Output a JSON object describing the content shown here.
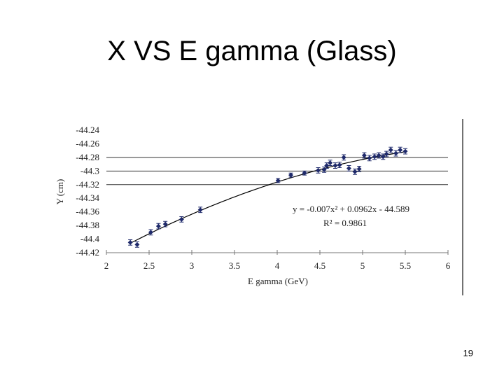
{
  "chart_data": {
    "type": "scatter",
    "title": "X VS E gamma (Glass)",
    "x_label": "E gamma (GeV)",
    "y_label": "Y (cm)",
    "annotations": [
      "y = -0.007x² + 0.0962x - 44.589",
      "R² = 0.9861"
    ],
    "page_number": "19",
    "xlim": [
      2,
      6
    ],
    "xticks": [
      2,
      2.5,
      3,
      3.5,
      4,
      4.5,
      5,
      5.5,
      6
    ],
    "ylim": [
      -44.42,
      -44.24
    ],
    "yticks": [
      -44.24,
      -44.26,
      -44.28,
      -44.3,
      -44.32,
      -44.34,
      -44.36,
      -44.38,
      -44.4,
      -44.42
    ],
    "hlines": [
      -44.28,
      -44.3,
      -44.32
    ],
    "color": "#1f2a6b",
    "series": [
      {
        "x": [
          2.28,
          2.36,
          2.52,
          2.61,
          2.69,
          2.88,
          3.1,
          4.01,
          4.16,
          4.32,
          4.48,
          4.55,
          4.58,
          4.62,
          4.68,
          4.73,
          4.78,
          4.84,
          4.91,
          4.96,
          5.02,
          5.08,
          5.14,
          5.19,
          5.24,
          5.28,
          5.33,
          5.39,
          5.44,
          5.5
        ],
        "values": [
          -44.405,
          -44.408,
          -44.39,
          -44.381,
          -44.378,
          -44.371,
          -44.357,
          -44.314,
          -44.306,
          -44.303,
          -44.299,
          -44.298,
          -44.292,
          -44.288,
          -44.292,
          -44.291,
          -44.28,
          -44.296,
          -44.301,
          -44.297,
          -44.277,
          -44.281,
          -44.279,
          -44.277,
          -44.279,
          -44.275,
          -44.269,
          -44.274,
          -44.269,
          -44.271
        ],
        "errors": [
          0.004,
          0.004,
          0.004,
          0.004,
          0.004,
          0.004,
          0.004,
          0.003,
          0.003,
          0.003,
          0.004,
          0.004,
          0.004,
          0.004,
          0.004,
          0.004,
          0.004,
          0.004,
          0.004,
          0.004,
          0.004,
          0.004,
          0.004,
          0.004,
          0.004,
          0.004,
          0.004,
          0.004,
          0.004,
          0.004
        ]
      }
    ],
    "trendline": {
      "coefficients": [
        -0.007,
        0.0962,
        -44.589
      ],
      "xrange": [
        2.28,
        5.5
      ]
    }
  }
}
